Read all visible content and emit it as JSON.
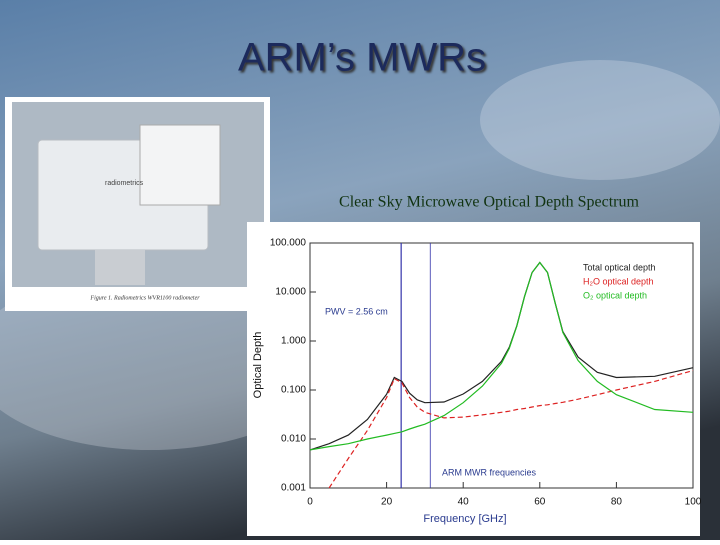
{
  "slide": {
    "title": "ARM’s MWRs",
    "photo_logo": "radiometrics",
    "photo_caption": "Figure 1. Radiometrics WVR1100 radiometer"
  },
  "chart_data": {
    "type": "line",
    "title": "Clear Sky Microwave Optical Depth Spectrum",
    "xlabel": "Frequency [GHz]",
    "ylabel": "Optical Depth",
    "annotations": [
      "PWV = 2.56 cm",
      "ARM MWR frequencies"
    ],
    "mwr_frequencies": [
      23.8,
      31.4
    ],
    "mwr_color": "#3333aa",
    "log_y": true,
    "xlim": [
      0,
      100
    ],
    "xticks": [
      0,
      20,
      40,
      60,
      80,
      100
    ],
    "ylim": [
      0.001,
      100
    ],
    "yticks": [
      {
        "value": 0.001,
        "label": "0.001"
      },
      {
        "value": 0.01,
        "label": "0.010"
      },
      {
        "value": 0.1,
        "label": "0.100"
      },
      {
        "value": 1,
        "label": "1.000"
      },
      {
        "value": 10,
        "label": "10.000"
      },
      {
        "value": 100,
        "label": "100.000"
      }
    ],
    "x": [
      0,
      5,
      10,
      15,
      20,
      22,
      24,
      26,
      28,
      30,
      35,
      40,
      45,
      50,
      52,
      54,
      56,
      58,
      60,
      62,
      64,
      66,
      70,
      75,
      80,
      90,
      100
    ],
    "series": [
      {
        "name": "Total optical depth",
        "color": "#222222",
        "values": [
          0.006,
          0.008,
          0.012,
          0.025,
          0.082,
          0.18,
          0.15,
          0.086,
          0.063,
          0.055,
          0.057,
          0.083,
          0.15,
          0.385,
          0.74,
          2.04,
          8.04,
          25,
          40,
          25,
          6.05,
          1.56,
          0.47,
          0.23,
          0.18,
          0.19,
          0.285
        ]
      },
      {
        "name": "H₂O optical depth",
        "color": "#dd2222",
        "values": [
          null,
          0.001,
          0.004,
          0.015,
          0.07,
          0.17,
          0.14,
          0.07,
          0.045,
          0.035,
          0.027,
          0.028,
          0.031,
          0.035,
          0.037,
          0.04,
          0.042,
          0.045,
          0.048,
          0.05,
          0.053,
          0.056,
          0.065,
          0.08,
          0.1,
          0.15,
          0.25
        ]
      },
      {
        "name": "O₂ optical depth",
        "color": "#22bb22",
        "values": [
          0.006,
          0.007,
          0.008,
          0.01,
          0.012,
          0.013,
          0.014,
          0.016,
          0.018,
          0.02,
          0.03,
          0.055,
          0.12,
          0.35,
          0.7,
          2,
          8,
          25,
          40,
          25,
          6,
          1.5,
          0.4,
          0.15,
          0.08,
          0.04,
          0.035
        ]
      }
    ]
  }
}
